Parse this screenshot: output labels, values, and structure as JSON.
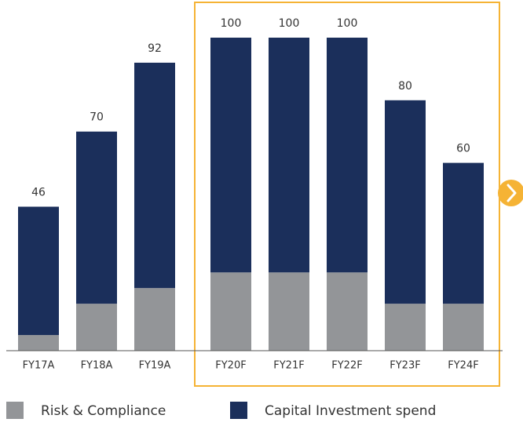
{
  "chart_data": {
    "type": "stacked_bar",
    "categories": [
      "FY17A",
      "FY18A",
      "FY19A",
      "FY20F",
      "FY21F",
      "FY22F",
      "FY23F",
      "FY24F"
    ],
    "series": [
      {
        "name": "Risk & Compliance",
        "color": "#939598",
        "values": [
          5,
          15,
          20,
          25,
          25,
          25,
          15,
          15
        ]
      },
      {
        "name": "Capital Investment spend",
        "color": "#1b2f5b",
        "values": [
          41,
          55,
          72,
          75,
          75,
          75,
          65,
          45
        ]
      }
    ],
    "totals": [
      46,
      70,
      92,
      100,
      100,
      100,
      80,
      60
    ],
    "ylim": [
      0,
      100
    ]
  }
}
